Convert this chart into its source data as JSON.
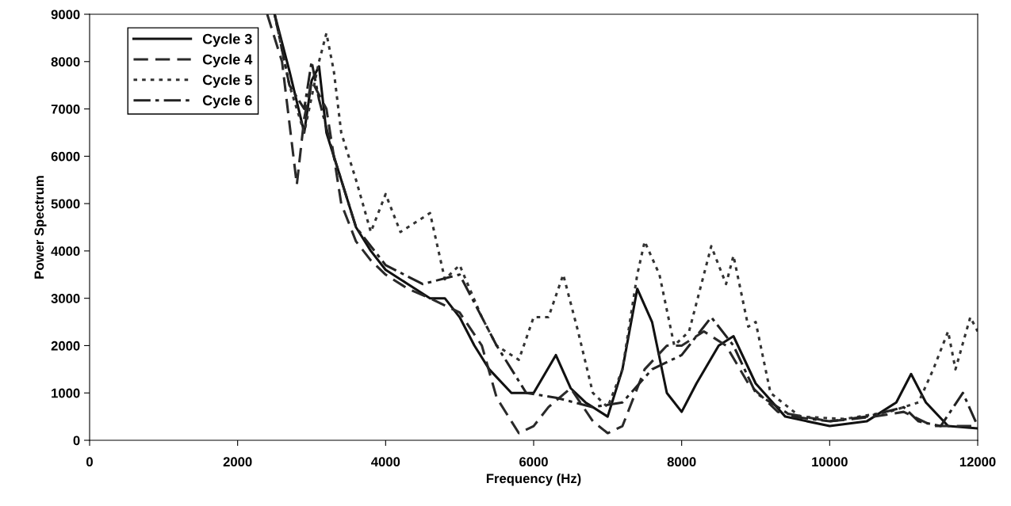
{
  "chart_data": {
    "type": "line",
    "xlabel": "Frequency (Hz)",
    "ylabel": "Power Spectrum",
    "xlim": [
      0,
      12000
    ],
    "ylim": [
      0,
      9000
    ],
    "xticks": [
      0,
      2000,
      4000,
      6000,
      8000,
      10000,
      12000
    ],
    "yticks": [
      0,
      1000,
      2000,
      3000,
      4000,
      5000,
      6000,
      7000,
      8000,
      9000
    ],
    "grid": false,
    "legend": "top left",
    "marker": "none",
    "series": [
      {
        "name": "Cycle 3",
        "color": "#111111",
        "line_style": "solid",
        "x": [
          2500,
          2700,
          2900,
          3000,
          3100,
          3200,
          3400,
          3600,
          3800,
          4000,
          4300,
          4600,
          4800,
          5000,
          5200,
          5400,
          5700,
          6000,
          6300,
          6500,
          6700,
          7000,
          7200,
          7400,
          7600,
          7800,
          8000,
          8200,
          8500,
          8700,
          9000,
          9400,
          10000,
          10500,
          10900,
          11100,
          11300,
          11600,
          12000
        ],
        "values": [
          9000,
          7800,
          6500,
          7600,
          7900,
          6500,
          5500,
          4500,
          4000,
          3600,
          3300,
          3000,
          3000,
          2600,
          2000,
          1500,
          1000,
          1000,
          1800,
          1100,
          800,
          500,
          1500,
          3200,
          2500,
          1000,
          600,
          1200,
          2000,
          2200,
          1200,
          500,
          300,
          400,
          800,
          1400,
          800,
          300,
          250
        ]
      },
      {
        "name": "Cycle 4",
        "color": "#2a2a2a",
        "line_style": "dashed",
        "x": [
          2400,
          2600,
          2800,
          2900,
          3000,
          3200,
          3400,
          3600,
          3800,
          4000,
          4300,
          4600,
          5000,
          5300,
          5500,
          5700,
          5800,
          6000,
          6200,
          6500,
          6800,
          7000,
          7200,
          7500,
          7800,
          8000,
          8300,
          8600,
          8900,
          9300,
          10000,
          10600,
          11000,
          11400,
          11800,
          12000
        ],
        "values": [
          9000,
          8000,
          5400,
          6800,
          7600,
          7000,
          5000,
          4200,
          3800,
          3500,
          3200,
          3000,
          2700,
          2000,
          900,
          400,
          150,
          300,
          700,
          1100,
          400,
          150,
          300,
          1500,
          2000,
          2000,
          2300,
          2000,
          1200,
          600,
          400,
          500,
          600,
          300,
          300,
          300
        ]
      },
      {
        "name": "Cycle 5",
        "color": "#333333",
        "line_style": "dotted",
        "x": [
          2500,
          2700,
          2900,
          3100,
          3200,
          3300,
          3400,
          3600,
          3800,
          4000,
          4200,
          4400,
          4600,
          4800,
          5000,
          5300,
          5500,
          5800,
          6000,
          6200,
          6400,
          6600,
          6800,
          7000,
          7200,
          7400,
          7500,
          7700,
          7900,
          8100,
          8400,
          8600,
          8700,
          8900,
          9000,
          9200,
          9600,
          10200,
          10800,
          11200,
          11400,
          11600,
          11700,
          11900,
          12000
        ],
        "values": [
          9000,
          7500,
          6500,
          8000,
          8600,
          7800,
          6500,
          5500,
          4400,
          5200,
          4400,
          4600,
          4800,
          3400,
          3700,
          2600,
          2000,
          1700,
          2600,
          2600,
          3500,
          2300,
          1000,
          700,
          1500,
          3500,
          4200,
          3500,
          2000,
          2300,
          4100,
          3300,
          3900,
          2400,
          2500,
          1000,
          500,
          450,
          600,
          800,
          1500,
          2300,
          1500,
          2600,
          2300
        ]
      },
      {
        "name": "Cycle 6",
        "color": "#222222",
        "line_style": "dashdot",
        "x": [
          2500,
          2700,
          2900,
          3000,
          3100,
          3300,
          3600,
          4000,
          4500,
          5000,
          5500,
          5900,
          6300,
          6800,
          7200,
          7600,
          8000,
          8400,
          8700,
          9000,
          9500,
          10000,
          10500,
          11000,
          11200,
          11500,
          11800,
          12000
        ],
        "values": [
          9000,
          7500,
          7000,
          8000,
          7200,
          6000,
          4500,
          3700,
          3300,
          3500,
          2000,
          1000,
          900,
          700,
          800,
          1500,
          1800,
          2600,
          2000,
          1000,
          500,
          400,
          500,
          700,
          400,
          300,
          1000,
          300
        ]
      }
    ]
  }
}
